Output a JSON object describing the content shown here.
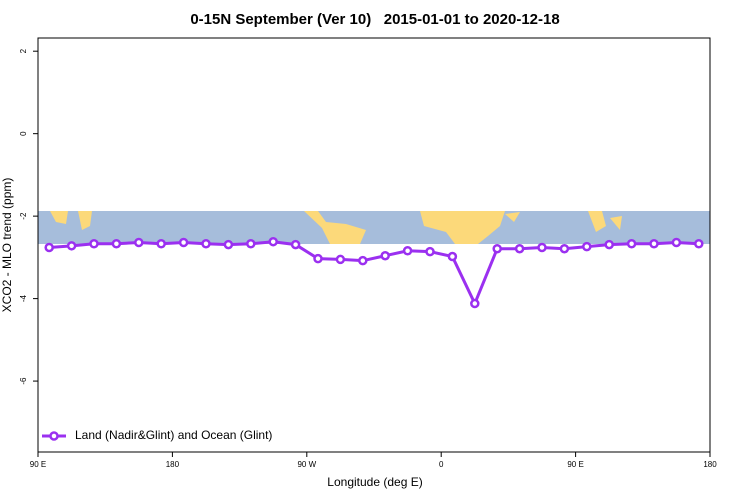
{
  "chart_data": {
    "type": "line",
    "title": "0-15N September (Ver 10)   2015-01-01 to 2020-12-18",
    "x_label": "Longitude (deg E)",
    "y_label": "XCO2 - MLO trend (ppm)",
    "x": [
      97.5,
      112.5,
      127.5,
      142.5,
      157.5,
      172.5,
      187.5,
      202.5,
      217.5,
      232.5,
      247.5,
      262.5,
      277.5,
      292.5,
      307.5,
      322.5,
      337.5,
      352.5,
      367.5,
      382.5,
      397.5,
      412.5,
      427.5,
      442.5,
      457.5,
      472.5,
      487.5,
      502.5,
      517.5,
      532.5
    ],
    "series": [
      {
        "name": "Land (Nadir&Glint) and Ocean (Glint)",
        "color": "#9b30f0",
        "values": [
          -2.76,
          -2.72,
          -2.67,
          -2.67,
          -2.64,
          -2.67,
          -2.64,
          -2.67,
          -2.69,
          -2.67,
          -2.62,
          -2.69,
          -3.03,
          -3.05,
          -3.08,
          -2.96,
          -2.84,
          -2.86,
          -2.98,
          -4.12,
          -2.79,
          -2.79,
          -2.76,
          -2.79,
          -2.74,
          -2.69,
          -2.67,
          -2.67,
          -2.64,
          -2.67
        ]
      }
    ],
    "xlim": [
      90,
      540
    ],
    "xticks": [
      {
        "value": 90,
        "label": "90 E"
      },
      180,
      {
        "value": 270,
        "label": "90 W"
      },
      {
        "value": 360,
        "label": "0"
      },
      {
        "value": 450,
        "label": "90 E"
      },
      {
        "value": 540,
        "label": "180"
      }
    ],
    "ylim": [
      -7.72,
      2.32
    ],
    "yticks": [
      2,
      0,
      -2,
      -4,
      -6
    ],
    "legend": "bottom-left"
  }
}
